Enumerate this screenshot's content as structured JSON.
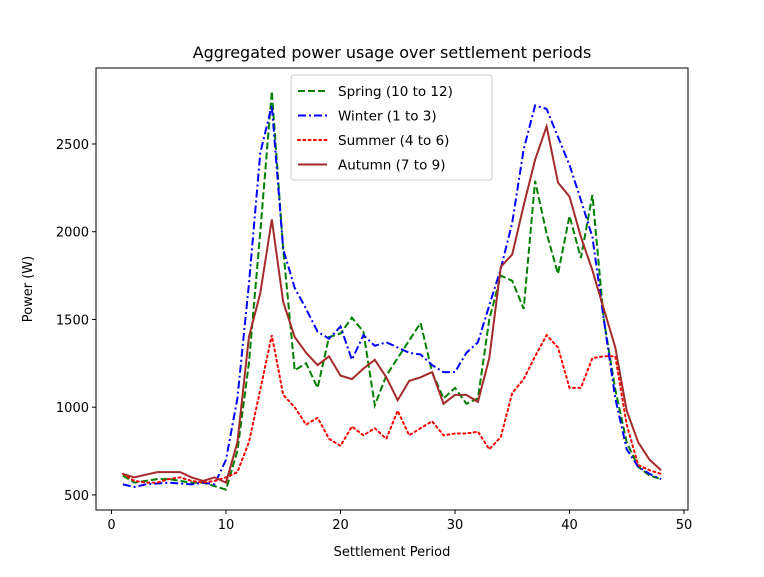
{
  "chart_data": {
    "type": "line",
    "title": "Aggregated power usage over settlement periods",
    "xlabel": "Settlement Period",
    "ylabel": "Power (W)",
    "xlim": [
      -1.35,
      50.35
    ],
    "ylim": [
      414,
      2933
    ],
    "xticks": [
      0,
      10,
      20,
      30,
      40,
      50
    ],
    "yticks": [
      500,
      1000,
      1500,
      2000,
      2500
    ],
    "grid": false,
    "legend_placement": "top-center",
    "x": [
      1,
      2,
      3,
      4,
      5,
      6,
      7,
      8,
      9,
      10,
      11,
      12,
      13,
      14,
      15,
      16,
      17,
      18,
      19,
      20,
      21,
      22,
      23,
      24,
      25,
      26,
      27,
      28,
      29,
      30,
      31,
      32,
      33,
      34,
      35,
      36,
      37,
      38,
      39,
      40,
      41,
      42,
      43,
      44,
      45,
      46,
      47,
      48
    ],
    "series": [
      {
        "name": "Spring (10 to 12)",
        "color": "#008000",
        "dash": "dashed",
        "values": [
          610,
          570,
          580,
          590,
          590,
          580,
          570,
          570,
          550,
          530,
          750,
          1250,
          2000,
          2800,
          1900,
          1210,
          1250,
          1110,
          1400,
          1420,
          1510,
          1430,
          1010,
          1180,
          1280,
          1380,
          1480,
          1200,
          1050,
          1110,
          1020,
          1050,
          1500,
          1750,
          1720,
          1560,
          2290,
          1990,
          1760,
          2090,
          1850,
          2210,
          1500,
          1100,
          800,
          660,
          610,
          590
        ]
      },
      {
        "name": "Winter (1 to 3)",
        "color": "#0000ff",
        "dash": "dashdot",
        "values": [
          560,
          545,
          560,
          565,
          570,
          565,
          560,
          570,
          560,
          700,
          1050,
          1700,
          2450,
          2720,
          1900,
          1680,
          1560,
          1430,
          1390,
          1460,
          1270,
          1410,
          1350,
          1370,
          1340,
          1310,
          1300,
          1240,
          1200,
          1200,
          1310,
          1370,
          1580,
          1790,
          2050,
          2470,
          2720,
          2700,
          2540,
          2380,
          2180,
          1970,
          1500,
          1050,
          760,
          660,
          620,
          590
        ]
      },
      {
        "name": "Summer (4 to 6)",
        "color": "#ff0000",
        "dash": "dotted",
        "values": [
          620,
          580,
          570,
          570,
          590,
          600,
          580,
          570,
          580,
          600,
          630,
          800,
          1100,
          1410,
          1070,
          1000,
          900,
          940,
          820,
          780,
          890,
          840,
          880,
          820,
          980,
          840,
          880,
          920,
          840,
          850,
          850,
          860,
          760,
          830,
          1080,
          1160,
          1290,
          1410,
          1340,
          1110,
          1110,
          1280,
          1290,
          1290,
          900,
          670,
          640,
          620
        ]
      },
      {
        "name": "Autumn (7 to 9)",
        "color": "#a52a2a",
        "dash": "solid",
        "values": [
          620,
          600,
          615,
          630,
          630,
          630,
          600,
          580,
          600,
          570,
          800,
          1400,
          1650,
          2070,
          1600,
          1400,
          1310,
          1240,
          1290,
          1180,
          1160,
          1220,
          1270,
          1170,
          1040,
          1150,
          1170,
          1200,
          1020,
          1070,
          1070,
          1030,
          1280,
          1800,
          1870,
          2150,
          2410,
          2600,
          2280,
          2200,
          1970,
          1780,
          1560,
          1340,
          980,
          800,
          700,
          640
        ]
      }
    ]
  }
}
